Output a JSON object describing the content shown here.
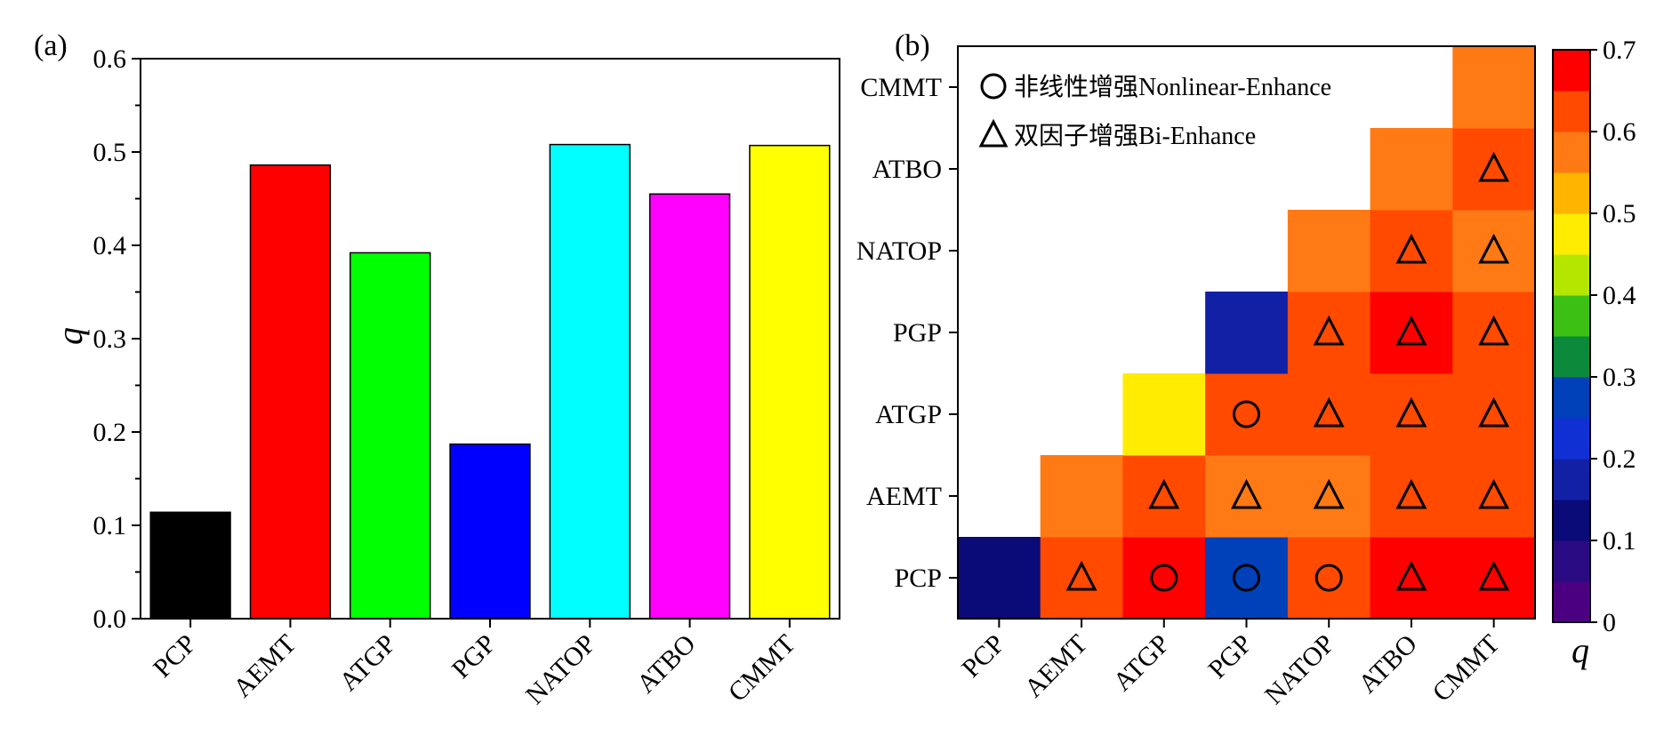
{
  "chart_data": [
    {
      "type": "bar",
      "panel_label": "(a)",
      "categories": [
        "PCP",
        "AEMT",
        "ATGP",
        "PGP",
        "NATOP",
        "ATBO",
        "CMMT"
      ],
      "values": [
        0.114,
        0.486,
        0.392,
        0.187,
        0.508,
        0.455,
        0.507
      ],
      "colors": [
        "#000000",
        "#ff0000",
        "#00ff00",
        "#0000ff",
        "#00ffff",
        "#ff00ff",
        "#ffff00"
      ],
      "ylabel": "q",
      "ylim": [
        0,
        0.6
      ],
      "yticks": [
        "0.0",
        "0.1",
        "0.2",
        "0.3",
        "0.4",
        "0.5",
        "0.6"
      ],
      "grid": false
    },
    {
      "type": "heatmap",
      "panel_label": "(b)",
      "categories": [
        "PCP",
        "AEMT",
        "ATGP",
        "PGP",
        "NATOP",
        "ATBO",
        "CMMT"
      ],
      "colorbar_label": "q",
      "colorbar_range": [
        0,
        0.7
      ],
      "colorbar_ticks": [
        "0",
        "0.1",
        "0.2",
        "0.3",
        "0.4",
        "0.5",
        "0.6",
        "0.7"
      ],
      "colorbar_colors": [
        "#4b0082",
        "#2a0a82",
        "#0a0a78",
        "#1220a6",
        "#1030d4",
        "#0040b8",
        "#0a8a3a",
        "#3cc014",
        "#b4e600",
        "#ffec00",
        "#ffb400",
        "#ff7a14",
        "#ff4a00",
        "#ff0000"
      ],
      "legend": [
        {
          "marker": "circle",
          "label": "非线性增强Nonlinear-Enhance"
        },
        {
          "marker": "triangle",
          "label": "双因子增强Bi-Enhance"
        }
      ],
      "legend_position": "top-left",
      "cells": [
        {
          "row": "PCP",
          "col": "PCP",
          "q": 0.114,
          "marker": null
        },
        {
          "row": "PCP",
          "col": "AEMT",
          "q": 0.6,
          "marker": "triangle"
        },
        {
          "row": "PCP",
          "col": "ATGP",
          "q": 0.65,
          "marker": "circle"
        },
        {
          "row": "PCP",
          "col": "PGP",
          "q": 0.27,
          "marker": "circle"
        },
        {
          "row": "PCP",
          "col": "NATOP",
          "q": 0.6,
          "marker": "circle"
        },
        {
          "row": "PCP",
          "col": "ATBO",
          "q": 0.65,
          "marker": "triangle"
        },
        {
          "row": "PCP",
          "col": "CMMT",
          "q": 0.65,
          "marker": "triangle"
        },
        {
          "row": "AEMT",
          "col": "AEMT",
          "q": 0.55,
          "marker": null
        },
        {
          "row": "AEMT",
          "col": "ATGP",
          "q": 0.6,
          "marker": "triangle"
        },
        {
          "row": "AEMT",
          "col": "PGP",
          "q": 0.55,
          "marker": "triangle"
        },
        {
          "row": "AEMT",
          "col": "NATOP",
          "q": 0.55,
          "marker": "triangle"
        },
        {
          "row": "AEMT",
          "col": "ATBO",
          "q": 0.6,
          "marker": "triangle"
        },
        {
          "row": "AEMT",
          "col": "CMMT",
          "q": 0.6,
          "marker": "triangle"
        },
        {
          "row": "ATGP",
          "col": "ATGP",
          "q": 0.48,
          "marker": null
        },
        {
          "row": "ATGP",
          "col": "PGP",
          "q": 0.6,
          "marker": "circle"
        },
        {
          "row": "ATGP",
          "col": "NATOP",
          "q": 0.6,
          "marker": "triangle"
        },
        {
          "row": "ATGP",
          "col": "ATBO",
          "q": 0.6,
          "marker": "triangle"
        },
        {
          "row": "ATGP",
          "col": "CMMT",
          "q": 0.6,
          "marker": "triangle"
        },
        {
          "row": "PGP",
          "col": "PGP",
          "q": 0.187,
          "marker": null
        },
        {
          "row": "PGP",
          "col": "NATOP",
          "q": 0.6,
          "marker": "triangle"
        },
        {
          "row": "PGP",
          "col": "ATBO",
          "q": 0.65,
          "marker": "triangle"
        },
        {
          "row": "PGP",
          "col": "CMMT",
          "q": 0.6,
          "marker": "triangle"
        },
        {
          "row": "NATOP",
          "col": "NATOP",
          "q": 0.55,
          "marker": null
        },
        {
          "row": "NATOP",
          "col": "ATBO",
          "q": 0.6,
          "marker": "triangle"
        },
        {
          "row": "NATOP",
          "col": "CMMT",
          "q": 0.55,
          "marker": "triangle"
        },
        {
          "row": "ATBO",
          "col": "ATBO",
          "q": 0.55,
          "marker": null
        },
        {
          "row": "ATBO",
          "col": "CMMT",
          "q": 0.6,
          "marker": "triangle"
        },
        {
          "row": "CMMT",
          "col": "CMMT",
          "q": 0.55,
          "marker": null
        }
      ]
    }
  ]
}
